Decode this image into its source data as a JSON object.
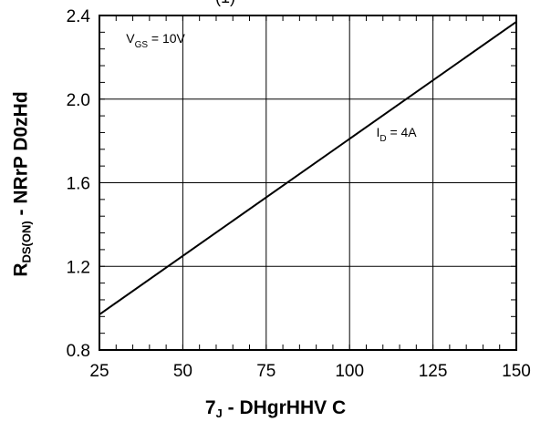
{
  "chart_data": {
    "type": "line",
    "title_partial": "(1)",
    "xlabel": {
      "main": "7",
      "sub": "J",
      "rest": " - DHgrHHV C"
    },
    "ylabel": {
      "main": "R",
      "sub": "DS(ON)",
      "rest": " - NRrP D0zHd"
    },
    "xlim": [
      25,
      150
    ],
    "ylim": [
      0.8,
      2.4
    ],
    "x_ticks": [
      "25",
      "50",
      "75",
      "100",
      "125",
      "150"
    ],
    "y_ticks": [
      "0.8",
      "1.2",
      "1.6",
      "2.0",
      "2.4"
    ],
    "grid": true,
    "annotations": [
      {
        "main": "V",
        "sub": "GS",
        "rest": " = 10V",
        "x": 33,
        "y": 2.27
      },
      {
        "main": "I",
        "sub": "D",
        "rest": " = 4A",
        "x": 108,
        "y": 1.82
      }
    ],
    "series": [
      {
        "x": [
          25,
          150
        ],
        "y": [
          0.97,
          2.37
        ]
      }
    ]
  }
}
